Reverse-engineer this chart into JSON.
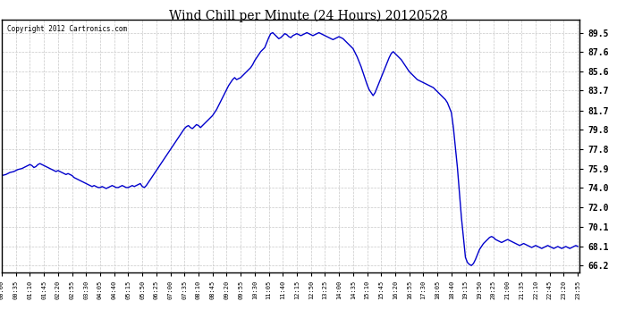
{
  "title": "Wind Chill per Minute (24 Hours) 20120528",
  "copyright_text": "Copyright 2012 Cartronics.com",
  "line_color": "#0000CC",
  "background_color": "#ffffff",
  "grid_color": "#c8c8c8",
  "y_ticks": [
    66.2,
    68.1,
    70.1,
    72.0,
    74.0,
    75.9,
    77.8,
    79.8,
    81.7,
    83.7,
    85.6,
    87.6,
    89.5
  ],
  "ylim": [
    65.5,
    90.8
  ],
  "x_labels": [
    "00:00",
    "00:35",
    "01:10",
    "01:45",
    "02:20",
    "02:55",
    "03:30",
    "04:05",
    "04:40",
    "05:15",
    "05:50",
    "06:25",
    "07:00",
    "07:35",
    "08:10",
    "08:45",
    "09:20",
    "09:55",
    "10:30",
    "11:05",
    "11:40",
    "12:15",
    "12:50",
    "13:25",
    "14:00",
    "14:35",
    "15:10",
    "15:45",
    "16:20",
    "16:55",
    "17:30",
    "18:05",
    "18:40",
    "19:15",
    "19:50",
    "20:25",
    "21:00",
    "21:35",
    "22:10",
    "22:45",
    "23:20",
    "23:55"
  ],
  "data_points": {
    "00:00": 75.2,
    "00:10": 75.3,
    "00:20": 75.5,
    "00:30": 75.6,
    "00:35": 75.7,
    "00:40": 75.8,
    "00:50": 75.9,
    "01:00": 76.1,
    "01:05": 76.2,
    "01:10": 76.3,
    "01:15": 76.2,
    "01:20": 76.0,
    "01:25": 76.1,
    "01:30": 76.3,
    "01:35": 76.4,
    "01:40": 76.3,
    "01:45": 76.2,
    "01:50": 76.1,
    "01:55": 76.0,
    "02:00": 75.9,
    "02:05": 75.8,
    "02:10": 75.7,
    "02:15": 75.6,
    "02:20": 75.7,
    "02:25": 75.6,
    "02:30": 75.5,
    "02:35": 75.4,
    "02:40": 75.3,
    "02:45": 75.4,
    "02:50": 75.3,
    "02:55": 75.2,
    "03:00": 75.0,
    "03:05": 74.9,
    "03:10": 74.8,
    "03:15": 74.7,
    "03:20": 74.6,
    "03:25": 74.5,
    "03:30": 74.4,
    "03:35": 74.3,
    "03:40": 74.2,
    "03:45": 74.1,
    "03:50": 74.2,
    "03:55": 74.1,
    "04:00": 74.0,
    "04:05": 74.0,
    "04:10": 74.1,
    "04:15": 74.0,
    "04:20": 73.9,
    "04:25": 74.0,
    "04:30": 74.1,
    "04:35": 74.2,
    "04:40": 74.1,
    "04:45": 74.0,
    "04:50": 74.0,
    "04:55": 74.1,
    "05:00": 74.2,
    "05:05": 74.1,
    "05:10": 74.0,
    "05:15": 74.0,
    "05:20": 74.1,
    "05:25": 74.2,
    "05:30": 74.1,
    "05:35": 74.2,
    "05:40": 74.3,
    "05:45": 74.4,
    "05:50": 74.1,
    "05:55": 74.0,
    "06:00": 74.2,
    "06:05": 74.5,
    "06:10": 74.8,
    "06:15": 75.1,
    "06:20": 75.4,
    "06:25": 75.7,
    "06:30": 76.0,
    "06:35": 76.3,
    "06:40": 76.6,
    "06:45": 76.9,
    "06:50": 77.2,
    "06:55": 77.5,
    "07:00": 77.8,
    "07:05": 78.1,
    "07:10": 78.4,
    "07:15": 78.7,
    "07:20": 79.0,
    "07:25": 79.3,
    "07:30": 79.6,
    "07:35": 79.9,
    "07:40": 80.1,
    "07:45": 80.2,
    "07:50": 80.0,
    "07:55": 79.9,
    "08:00": 80.1,
    "08:05": 80.3,
    "08:10": 80.2,
    "08:15": 80.0,
    "08:20": 80.2,
    "08:25": 80.4,
    "08:30": 80.6,
    "08:35": 80.8,
    "08:40": 81.0,
    "08:45": 81.2,
    "08:50": 81.5,
    "08:55": 81.8,
    "09:00": 82.2,
    "09:05": 82.6,
    "09:10": 83.0,
    "09:15": 83.4,
    "09:20": 83.8,
    "09:25": 84.2,
    "09:30": 84.5,
    "09:35": 84.8,
    "09:40": 85.0,
    "09:45": 84.8,
    "09:50": 84.9,
    "09:55": 85.0,
    "10:00": 85.2,
    "10:05": 85.4,
    "10:10": 85.6,
    "10:15": 85.8,
    "10:20": 86.0,
    "10:25": 86.3,
    "10:30": 86.7,
    "10:35": 87.0,
    "10:40": 87.3,
    "10:45": 87.6,
    "10:50": 87.8,
    "10:55": 88.0,
    "11:00": 88.5,
    "11:05": 89.0,
    "11:10": 89.4,
    "11:15": 89.5,
    "11:20": 89.3,
    "11:25": 89.1,
    "11:30": 88.9,
    "11:35": 89.0,
    "11:40": 89.2,
    "11:45": 89.4,
    "11:50": 89.3,
    "11:55": 89.1,
    "12:00": 89.0,
    "12:05": 89.2,
    "12:10": 89.3,
    "12:15": 89.4,
    "12:20": 89.3,
    "12:25": 89.2,
    "12:30": 89.3,
    "12:35": 89.4,
    "12:40": 89.5,
    "12:45": 89.4,
    "12:50": 89.3,
    "12:55": 89.2,
    "13:00": 89.3,
    "13:05": 89.4,
    "13:10": 89.5,
    "13:15": 89.4,
    "13:20": 89.3,
    "13:25": 89.2,
    "13:30": 89.1,
    "13:35": 89.0,
    "13:40": 88.9,
    "13:45": 88.8,
    "13:50": 88.9,
    "13:55": 89.0,
    "14:00": 89.1,
    "14:05": 89.0,
    "14:10": 88.9,
    "14:15": 88.7,
    "14:20": 88.5,
    "14:25": 88.3,
    "14:30": 88.1,
    "14:35": 87.9,
    "14:40": 87.5,
    "14:45": 87.1,
    "14:50": 86.6,
    "14:55": 86.1,
    "15:00": 85.5,
    "15:05": 84.9,
    "15:10": 84.3,
    "15:15": 83.8,
    "15:20": 83.5,
    "15:25": 83.2,
    "15:30": 83.5,
    "15:35": 84.0,
    "15:40": 84.5,
    "15:45": 85.0,
    "15:50": 85.5,
    "15:55": 86.0,
    "16:00": 86.5,
    "16:05": 87.0,
    "16:10": 87.4,
    "16:15": 87.6,
    "16:20": 87.4,
    "16:25": 87.2,
    "16:30": 87.0,
    "16:35": 86.8,
    "16:40": 86.5,
    "16:45": 86.2,
    "16:50": 85.9,
    "16:55": 85.6,
    "17:00": 85.4,
    "17:05": 85.2,
    "17:10": 85.0,
    "17:15": 84.8,
    "17:20": 84.7,
    "17:25": 84.6,
    "17:30": 84.5,
    "17:35": 84.4,
    "17:40": 84.3,
    "17:45": 84.2,
    "17:50": 84.1,
    "17:55": 84.0,
    "18:00": 83.8,
    "18:05": 83.6,
    "18:10": 83.4,
    "18:15": 83.2,
    "18:20": 83.0,
    "18:25": 82.8,
    "18:30": 82.5,
    "18:35": 82.0,
    "18:40": 81.5,
    "18:45": 80.0,
    "18:50": 78.0,
    "18:55": 76.0,
    "19:00": 73.5,
    "19:05": 71.0,
    "19:10": 69.0,
    "19:15": 67.0,
    "19:20": 66.5,
    "19:25": 66.3,
    "19:30": 66.2,
    "19:35": 66.4,
    "19:40": 66.8,
    "19:45": 67.3,
    "19:50": 67.8,
    "19:55": 68.1,
    "20:00": 68.4,
    "20:05": 68.6,
    "20:10": 68.8,
    "20:15": 69.0,
    "20:20": 69.1,
    "20:25": 69.0,
    "20:30": 68.8,
    "20:35": 68.7,
    "20:40": 68.6,
    "20:45": 68.5,
    "20:50": 68.6,
    "20:55": 68.7,
    "21:00": 68.8,
    "21:05": 68.7,
    "21:10": 68.6,
    "21:15": 68.5,
    "21:20": 68.4,
    "21:25": 68.3,
    "21:30": 68.2,
    "21:35": 68.3,
    "21:40": 68.4,
    "21:45": 68.3,
    "21:50": 68.2,
    "21:55": 68.1,
    "22:00": 68.0,
    "22:05": 68.1,
    "22:10": 68.2,
    "22:15": 68.1,
    "22:20": 68.0,
    "22:25": 67.9,
    "22:30": 68.0,
    "22:35": 68.1,
    "22:40": 68.2,
    "22:45": 68.1,
    "22:50": 68.0,
    "22:55": 67.9,
    "23:00": 68.0,
    "23:05": 68.1,
    "23:10": 68.0,
    "23:15": 67.9,
    "23:20": 68.0,
    "23:25": 68.1,
    "23:30": 68.0,
    "23:35": 67.9,
    "23:40": 68.0,
    "23:45": 68.1,
    "23:50": 68.2,
    "23:55": 68.1
  }
}
